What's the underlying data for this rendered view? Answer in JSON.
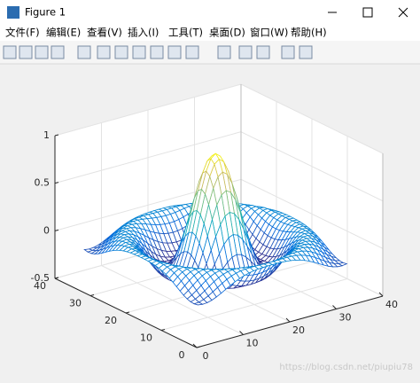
{
  "window": {
    "title": "Figure 1"
  },
  "menu": [
    "文件(F)",
    "编辑(E)",
    "查看(V)",
    "插入(I)",
    "工具(T)",
    "桌面(D)",
    "窗口(W)",
    "帮助(H)"
  ],
  "chart_data": {
    "type": "mesh",
    "xlim": [
      0,
      40
    ],
    "ylim": [
      0,
      40
    ],
    "zlim": [
      -0.5,
      1
    ],
    "xticks": [
      0,
      10,
      20,
      30,
      40
    ],
    "yticks": [
      0,
      10,
      20,
      30,
      40
    ],
    "zticks": [
      -0.5,
      0,
      0.5,
      1
    ],
    "grid": true
  },
  "watermark": "https://blog.csdn.net/piupiu78"
}
